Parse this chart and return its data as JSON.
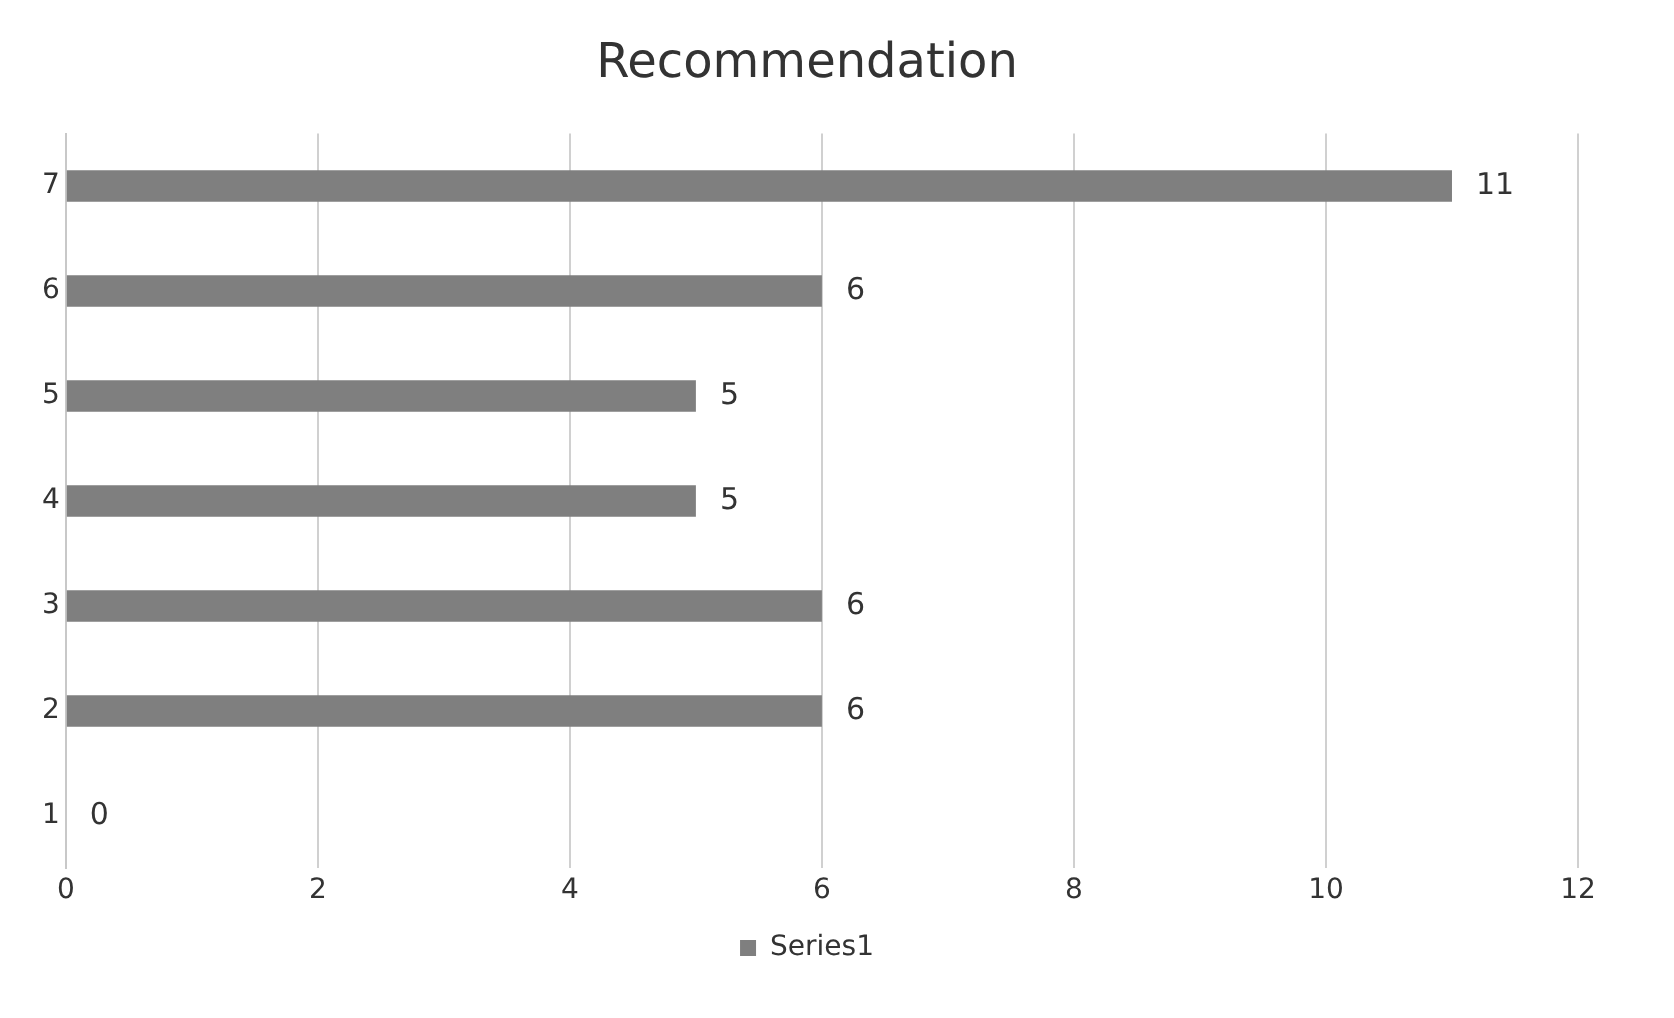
{
  "chart_data": {
    "type": "bar",
    "title": "Recommendation",
    "orientation": "horizontal",
    "categories": [
      "7",
      "6",
      "5",
      "4",
      "3",
      "2",
      "1"
    ],
    "series": [
      {
        "name": "Series1",
        "color": "#7f7f7f",
        "values": [
          11,
          6,
          5,
          5,
          6,
          6,
          0
        ]
      }
    ],
    "xlim": [
      0,
      12
    ],
    "xticks": [
      0,
      2,
      4,
      6,
      8,
      10,
      12
    ],
    "grid": "x",
    "legend": "bottom",
    "data_labels": true
  }
}
